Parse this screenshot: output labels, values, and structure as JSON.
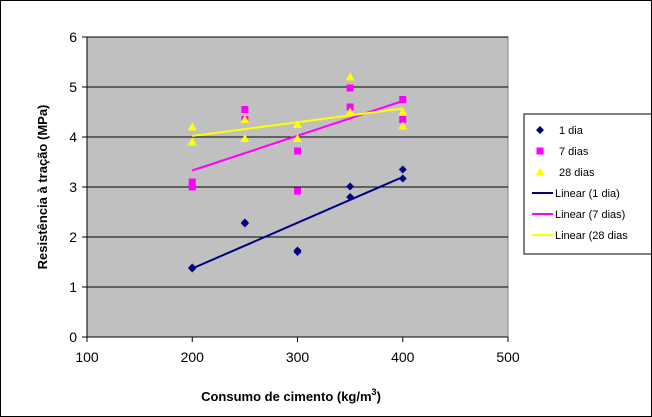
{
  "chart_data": {
    "type": "scatter",
    "xlabel": "Consumo de cimento (kg/m",
    "xlabel_sup": "3",
    "xlabel_end": ")",
    "ylabel": "Resistência à tração (MPa)",
    "xlim": [
      100,
      500
    ],
    "ylim": [
      0,
      6
    ],
    "xticks": [
      "100",
      "200",
      "300",
      "400",
      "500"
    ],
    "yticks": [
      "0",
      "1",
      "2",
      "3",
      "4",
      "5",
      "6"
    ],
    "grid": "horizontal",
    "plot_background": "#c0c0c0",
    "legend_position": "right",
    "series": [
      {
        "name": "1 dia",
        "marker": "diamond",
        "color": "#000080",
        "points": [
          [
            200,
            1.37
          ],
          [
            200,
            1.39
          ],
          [
            250,
            2.27
          ],
          [
            250,
            2.29
          ],
          [
            300,
            1.7
          ],
          [
            300,
            1.73
          ],
          [
            350,
            2.8
          ],
          [
            350,
            3.01
          ],
          [
            400,
            3.17
          ],
          [
            400,
            3.35
          ]
        ]
      },
      {
        "name": "7 dias",
        "marker": "square",
        "color": "#ff00ff",
        "points": [
          [
            200,
            3.0
          ],
          [
            200,
            3.1
          ],
          [
            250,
            4.35
          ],
          [
            250,
            4.55
          ],
          [
            300,
            2.92
          ],
          [
            300,
            3.72
          ],
          [
            350,
            4.6
          ],
          [
            350,
            4.98
          ],
          [
            400,
            4.35
          ],
          [
            400,
            4.75
          ]
        ]
      },
      {
        "name": "28 dias",
        "marker": "triangle",
        "color": "#ffff00",
        "points": [
          [
            200,
            3.9
          ],
          [
            200,
            4.2
          ],
          [
            250,
            3.97
          ],
          [
            250,
            4.35
          ],
          [
            300,
            3.97
          ],
          [
            300,
            4.25
          ],
          [
            350,
            4.5
          ],
          [
            350,
            5.2
          ],
          [
            400,
            4.22
          ],
          [
            400,
            4.5
          ]
        ]
      }
    ],
    "trendlines": [
      {
        "name": "Linear (1 dia)",
        "color": "#000080",
        "from": [
          200,
          1.37
        ],
        "to": [
          400,
          3.2
        ]
      },
      {
        "name": "Linear (7 dias)",
        "color": "#ff00ff",
        "from": [
          200,
          3.33
        ],
        "to": [
          400,
          4.72
        ]
      },
      {
        "name": "Linear (28 dias",
        "color": "#ffff00",
        "from": [
          200,
          4.02
        ],
        "to": [
          400,
          4.57
        ]
      }
    ]
  }
}
